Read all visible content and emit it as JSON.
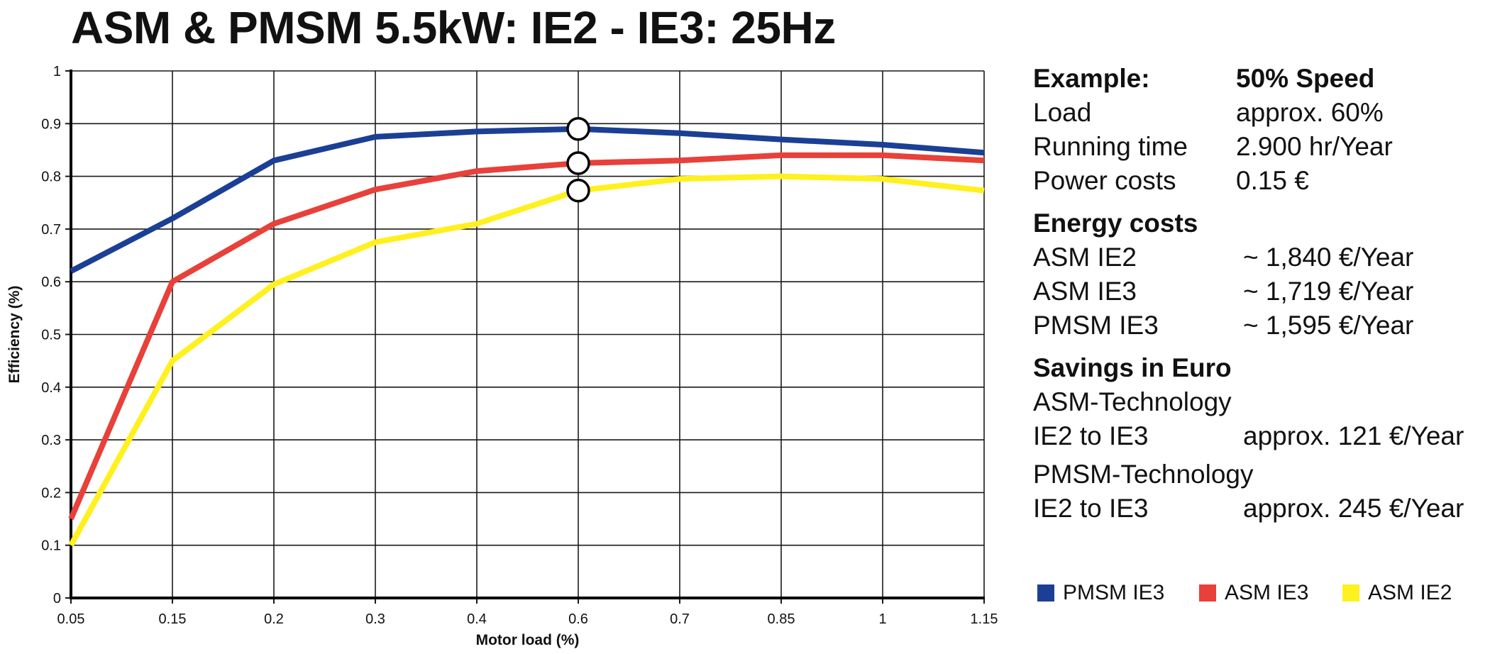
{
  "title": "ASM & PMSM 5.5kW: IE2 - IE3: 25Hz",
  "chart_data": {
    "type": "line",
    "categories": [
      "0.05",
      "0.15",
      "0.2",
      "0.3",
      "0.4",
      "0.6",
      "0.7",
      "0.85",
      "1",
      "1.15"
    ],
    "xlabel": "Motor load (%)",
    "ylabel": "Efficiency (%)",
    "ylim": [
      0,
      1
    ],
    "yticks": [
      "0",
      "0.1",
      "0.2",
      "0.3",
      "0.4",
      "0.5",
      "0.6",
      "0.7",
      "0.8",
      "0.9",
      "1"
    ],
    "grid": true,
    "legend_position": "bottom-right",
    "series": [
      {
        "name": "PMSM IE3",
        "color": "#1b3f95",
        "values": [
          0.62,
          0.72,
          0.83,
          0.875,
          0.885,
          0.89,
          0.882,
          0.87,
          0.86,
          0.845
        ]
      },
      {
        "name": "ASM IE3",
        "color": "#e8403a",
        "values": [
          0.15,
          0.6,
          0.71,
          0.775,
          0.81,
          0.825,
          0.83,
          0.84,
          0.84,
          0.83
        ]
      },
      {
        "name": "ASM IE2",
        "color": "#fff01f",
        "values": [
          0.1,
          0.45,
          0.595,
          0.675,
          0.71,
          0.773,
          0.795,
          0.8,
          0.795,
          0.773
        ]
      }
    ],
    "markers": [
      {
        "x": "0.6",
        "y": 0.89
      },
      {
        "x": "0.6",
        "y": 0.825
      },
      {
        "x": "0.6",
        "y": 0.773
      }
    ]
  },
  "panel": {
    "example": {
      "label": "Example:",
      "value": "50% Speed"
    },
    "load": {
      "label": "Load",
      "value": "approx. 60%"
    },
    "running_time": {
      "label": "Running time",
      "value": "2.900 hr/Year"
    },
    "power_costs": {
      "label": "Power costs",
      "value": "0.15 €"
    },
    "energy_heading": "Energy costs",
    "energy": [
      {
        "label": "ASM IE2",
        "value": "~ 1,840 €/Year"
      },
      {
        "label": "ASM IE3",
        "value": "~ 1,719 €/Year"
      },
      {
        "label": "PMSM IE3",
        "value": "~ 1,595 €/Year"
      }
    ],
    "savings_heading": "Savings in Euro",
    "asm_tech": "ASM-Technology",
    "asm_saving": {
      "label": "IE2 to IE3",
      "value": "approx. 121 €/Year"
    },
    "pmsm_tech": "PMSM-Technology",
    "pmsm_saving": {
      "label": "IE2 to IE3",
      "value": "approx. 245 €/Year"
    }
  },
  "legend": [
    {
      "label": "PMSM IE3",
      "color": "#1b3f95"
    },
    {
      "label": "ASM IE3",
      "color": "#e8403a"
    },
    {
      "label": "ASM IE2",
      "color": "#fff01f"
    }
  ]
}
